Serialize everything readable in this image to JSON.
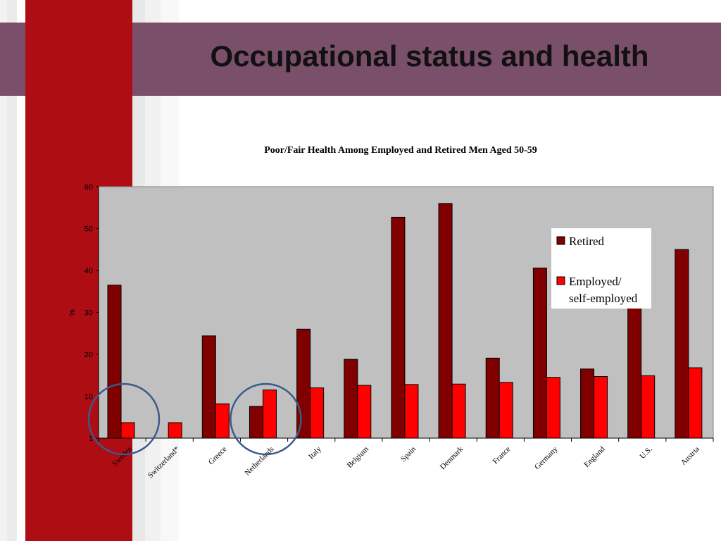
{
  "slide": {
    "title": "Occupational status and health"
  },
  "colors": {
    "retired": "#800000",
    "employed": "#ff0000",
    "plot_bg": "#c0c0c0",
    "title_band": "#7a4f6a",
    "accent_bar": "#ae0d14",
    "highlight_circle": "#3b5a8a"
  },
  "chart_data": {
    "type": "bar",
    "title": "Poor/Fair Health Among Employed and Retired Men Aged 50-59",
    "ylabel": "%",
    "xlabel": "",
    "ylim": [
      0,
      60
    ],
    "yticks": [
      "1",
      "10",
      "20",
      "30",
      "40",
      "50",
      "60"
    ],
    "categories": [
      "Sweden",
      "Switzerland*",
      "Greece",
      "Netherlands",
      "Italy",
      "Belgium",
      "Spain",
      "Denmark",
      "France",
      "Germany",
      "England",
      "U.S.",
      "Austria"
    ],
    "series": [
      {
        "name": "Retired",
        "values": [
          36.5,
          null,
          24.4,
          7.6,
          26.0,
          18.8,
          52.7,
          56.0,
          19.1,
          40.6,
          16.5,
          31.5,
          45.0
        ]
      },
      {
        "name": "Employed/ self-employed",
        "legend_lines": [
          "Employed/",
          "self-employed"
        ],
        "values": [
          3.7,
          3.7,
          8.2,
          11.5,
          12.0,
          12.6,
          12.8,
          12.9,
          13.3,
          14.5,
          14.7,
          14.9,
          16.8
        ]
      }
    ],
    "grid": false,
    "legend_position": "right",
    "highlighted_categories": [
      "Sweden",
      "Netherlands"
    ]
  }
}
